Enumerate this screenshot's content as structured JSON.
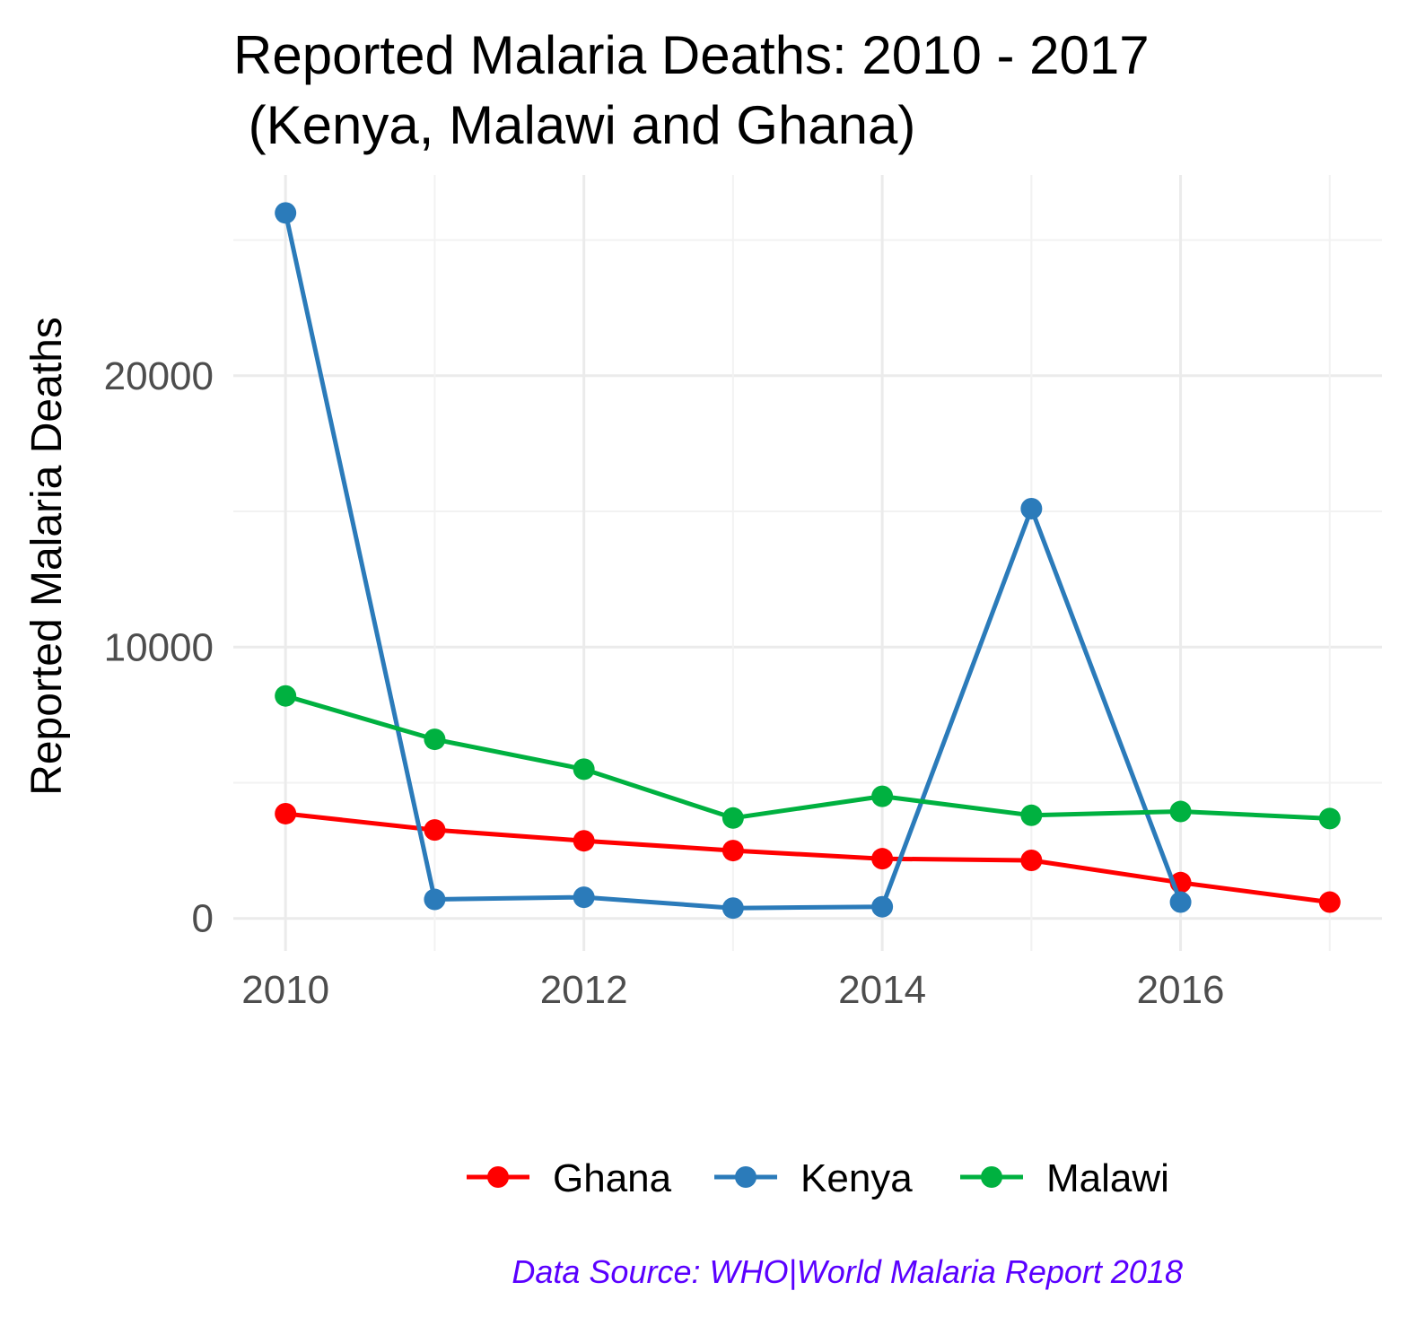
{
  "chart_data": {
    "type": "line",
    "title_lines": [
      "Reported Malaria Deaths: 2010 - 2017",
      " (Kenya, Malawi and Ghana)"
    ],
    "xlabel": "",
    "ylabel": "Reported Malaria Deaths",
    "x": [
      2010,
      2011,
      2012,
      2013,
      2014,
      2015,
      2016,
      2017
    ],
    "xlim": [
      2009.65,
      2017.35
    ],
    "ylim": [
      -1200,
      27400
    ],
    "x_ticks": [
      2010,
      2012,
      2014,
      2016
    ],
    "x_tick_labels": [
      "2010",
      "2012",
      "2014",
      "2016"
    ],
    "y_ticks": [
      0,
      10000,
      20000
    ],
    "y_tick_labels": [
      "0",
      "10000",
      "20000"
    ],
    "grid": true,
    "legend_position": "bottom",
    "series": [
      {
        "name": "Ghana",
        "color": "#ff0000",
        "x": [
          2010,
          2011,
          2012,
          2013,
          2014,
          2015,
          2016,
          2017
        ],
        "values": [
          3860,
          3260,
          2860,
          2500,
          2200,
          2140,
          1320,
          600
        ]
      },
      {
        "name": "Kenya",
        "color": "#2b7bba",
        "x": [
          2010,
          2011,
          2012,
          2013,
          2014,
          2015,
          2016
        ],
        "values": [
          26000,
          700,
          780,
          380,
          430,
          15100,
          600
        ]
      },
      {
        "name": "Malawi",
        "color": "#00b140",
        "x": [
          2010,
          2011,
          2012,
          2013,
          2014,
          2015,
          2016,
          2017
        ],
        "values": [
          8200,
          6600,
          5500,
          3700,
          4500,
          3800,
          3940,
          3680
        ]
      }
    ],
    "caption": "Data Source: WHO|World Malaria Report 2018",
    "caption_color": "#5a00ff"
  }
}
